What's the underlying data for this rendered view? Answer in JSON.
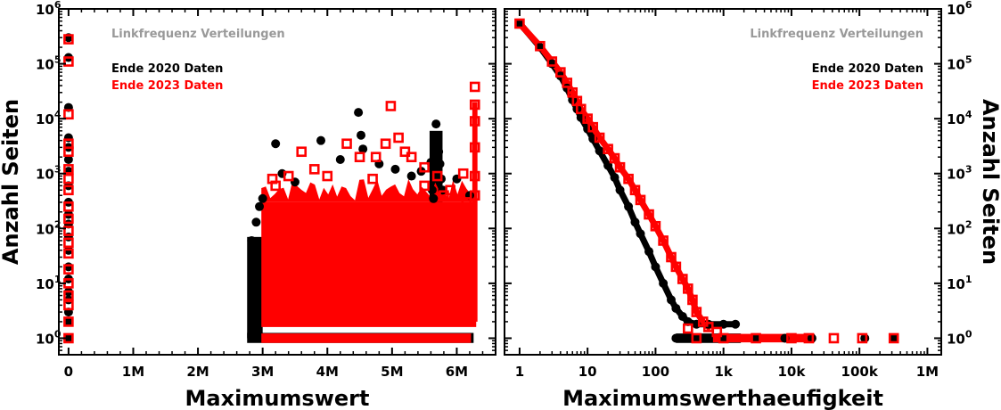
{
  "colors": {
    "series_2020": "#000000",
    "series_2023": "#ff0000",
    "title": "#999999"
  },
  "chart_data": [
    {
      "type": "scatter",
      "title": "Linkfrequenz Verteilungen",
      "xlabel": "Maximumswert",
      "ylabel": "Anzahl Seiten",
      "x_scale": "linear",
      "y_scale": "log",
      "xlim": [
        -150000,
        6600000
      ],
      "ylim": [
        0.5,
        1000000
      ],
      "x_ticks": [
        0,
        1000000,
        2000000,
        3000000,
        4000000,
        5000000,
        6000000
      ],
      "x_tick_labels": [
        "0",
        "1M",
        "2M",
        "3M",
        "4M",
        "5M",
        "6M"
      ],
      "y_ticks": [
        1,
        10,
        100,
        1000,
        10000,
        100000,
        1000000
      ],
      "y_tick_labels": [
        "10",
        "10",
        "10",
        "10",
        "10",
        "10",
        "10"
      ],
      "y_tick_exponents": [
        "0",
        "1",
        "2",
        "3",
        "4",
        "5",
        "6"
      ],
      "legend_position": "top-left",
      "series": [
        {
          "name": "Ende 2020 Daten",
          "marker": "filled-circle",
          "points": [
            [
              0,
              300000
            ],
            [
              0,
              130000
            ],
            [
              0,
              16000
            ],
            [
              0,
              4500
            ],
            [
              0,
              3000
            ],
            [
              0,
              1800
            ],
            [
              0,
              1100
            ],
            [
              0,
              600
            ],
            [
              0,
              300
            ],
            [
              0,
              180
            ],
            [
              0,
              120
            ],
            [
              0,
              70
            ],
            [
              0,
              40
            ],
            [
              0,
              20
            ],
            [
              0,
              12
            ],
            [
              0,
              7
            ],
            [
              0,
              5
            ],
            [
              0,
              3
            ],
            [
              0,
              2
            ],
            [
              0,
              1
            ],
            [
              3200000,
              3500
            ],
            [
              3900000,
              4000
            ],
            [
              4200000,
              1800
            ],
            [
              4480000,
              13000
            ],
            [
              4520000,
              5000
            ],
            [
              4550000,
              2800
            ],
            [
              4800000,
              1500
            ],
            [
              5050000,
              1200
            ],
            [
              5300000,
              900
            ],
            [
              5450000,
              1100
            ],
            [
              5600000,
              1600
            ],
            [
              5680000,
              8000
            ],
            [
              5700000,
              4000
            ],
            [
              5720000,
              2500
            ],
            [
              5740000,
              1500
            ],
            [
              5760000,
              800
            ],
            [
              5780000,
              500
            ],
            [
              5620000,
              500
            ],
            [
              5640000,
              350
            ],
            [
              6000000,
              800
            ],
            [
              6200000,
              400
            ],
            [
              2900000,
              130
            ],
            [
              2950000,
              250
            ],
            [
              3000000,
              350
            ],
            [
              3300000,
              1000
            ],
            [
              3500000,
              700
            ],
            [
              2830000,
              60
            ],
            [
              2860000,
              40
            ],
            [
              2880000,
              25
            ]
          ]
        },
        {
          "name": "Ende 2023 Daten",
          "marker": "open-square",
          "points": [
            [
              0,
              280000
            ],
            [
              0,
              110000
            ],
            [
              0,
              12000
            ],
            [
              0,
              3500
            ],
            [
              0,
              2500
            ],
            [
              0,
              1200
            ],
            [
              0,
              800
            ],
            [
              0,
              500
            ],
            [
              0,
              250
            ],
            [
              0,
              150
            ],
            [
              0,
              90
            ],
            [
              0,
              55
            ],
            [
              0,
              35
            ],
            [
              0,
              18
            ],
            [
              0,
              10
            ],
            [
              0,
              6
            ],
            [
              0,
              4
            ],
            [
              0,
              2
            ],
            [
              0,
              1
            ],
            [
              3150000,
              800
            ],
            [
              3200000,
              600
            ],
            [
              3400000,
              900
            ],
            [
              3600000,
              2500
            ],
            [
              3800000,
              1200
            ],
            [
              4000000,
              900
            ],
            [
              4300000,
              3500
            ],
            [
              4500000,
              2000
            ],
            [
              4700000,
              800
            ],
            [
              4750000,
              2000
            ],
            [
              4900000,
              3500
            ],
            [
              4980000,
              17000
            ],
            [
              5100000,
              4500
            ],
            [
              5200000,
              2500
            ],
            [
              5300000,
              2000
            ],
            [
              5500000,
              1300
            ],
            [
              5700000,
              900
            ],
            [
              5900000,
              500
            ],
            [
              6100000,
              1000
            ],
            [
              6150000,
              300
            ],
            [
              6280000,
              38000
            ],
            [
              6280000,
              18000
            ],
            [
              6280000,
              9000
            ],
            [
              6280000,
              3000
            ],
            [
              6280000,
              900
            ],
            [
              6280000,
              400
            ],
            [
              5500000,
              600
            ],
            [
              5800000,
              400
            ]
          ]
        }
      ]
    },
    {
      "type": "scatter",
      "title": "Linkfrequenz Verteilungen",
      "xlabel": "Maximumswerthaeufigkeit",
      "ylabel": "Anzahl Seiten",
      "x_scale": "log",
      "y_scale": "log",
      "xlim": [
        0.6,
        1600000
      ],
      "ylim": [
        0.5,
        1000000
      ],
      "x_ticks": [
        1,
        10,
        100,
        1000,
        10000,
        100000,
        1000000
      ],
      "x_tick_labels": [
        "1",
        "10",
        "100",
        "1k",
        "10k",
        "100k",
        "1M"
      ],
      "y_ticks": [
        1,
        10,
        100,
        1000,
        10000,
        100000,
        1000000
      ],
      "y_tick_labels": [
        "10",
        "10",
        "10",
        "10",
        "10",
        "10",
        "10"
      ],
      "y_tick_exponents": [
        "0",
        "1",
        "2",
        "3",
        "4",
        "5",
        "6"
      ],
      "legend_position": "top-right",
      "series": [
        {
          "name": "Ende 2020 Daten",
          "marker": "filled-circle",
          "points": [
            [
              1,
              550000
            ],
            [
              2,
              200000
            ],
            [
              3,
              100000
            ],
            [
              4,
              60000
            ],
            [
              5,
              36000
            ],
            [
              6,
              22000
            ],
            [
              7,
              15000
            ],
            [
              8,
              10500
            ],
            [
              10,
              6500
            ],
            [
              12,
              4300
            ],
            [
              15,
              2600
            ],
            [
              20,
              1400
            ],
            [
              25,
              850
            ],
            [
              30,
              500
            ],
            [
              40,
              250
            ],
            [
              50,
              130
            ],
            [
              60,
              80
            ],
            [
              80,
              38
            ],
            [
              100,
              20
            ],
            [
              130,
              10
            ],
            [
              170,
              5
            ],
            [
              200,
              3.5
            ],
            [
              250,
              2.5
            ],
            [
              300,
              2
            ],
            [
              400,
              1.8
            ],
            [
              600,
              1.8
            ],
            [
              1000,
              1.8
            ],
            [
              1500,
              1.8
            ],
            [
              200,
              1
            ],
            [
              400,
              1
            ],
            [
              1000,
              1
            ],
            [
              3000,
              1
            ],
            [
              8000,
              1
            ],
            [
              20000,
              1
            ],
            [
              120000,
              1
            ],
            [
              320000,
              1
            ]
          ]
        },
        {
          "name": "Ende 2023 Daten",
          "marker": "open-square",
          "points": [
            [
              1,
              540000
            ],
            [
              2,
              210000
            ],
            [
              3,
              110000
            ],
            [
              4,
              70000
            ],
            [
              5,
              45000
            ],
            [
              6,
              30000
            ],
            [
              7,
              21000
            ],
            [
              8,
              15000
            ],
            [
              10,
              10000
            ],
            [
              12,
              7000
            ],
            [
              15,
              4500
            ],
            [
              20,
              2800
            ],
            [
              25,
              1900
            ],
            [
              30,
              1300
            ],
            [
              40,
              800
            ],
            [
              50,
              500
            ],
            [
              60,
              330
            ],
            [
              80,
              180
            ],
            [
              100,
              110
            ],
            [
              130,
              60
            ],
            [
              170,
              30
            ],
            [
              200,
              20
            ],
            [
              250,
              12
            ],
            [
              300,
              8
            ],
            [
              350,
              5
            ],
            [
              400,
              3
            ],
            [
              500,
              2
            ],
            [
              300,
              1.5
            ],
            [
              600,
              1.6
            ],
            [
              800,
              1.3
            ],
            [
              400,
              1
            ],
            [
              1000,
              1
            ],
            [
              3000,
              1
            ],
            [
              10000,
              1
            ],
            [
              18000,
              1
            ],
            [
              42000,
              1
            ],
            [
              110000,
              1
            ],
            [
              320000,
              1
            ]
          ]
        }
      ]
    }
  ]
}
